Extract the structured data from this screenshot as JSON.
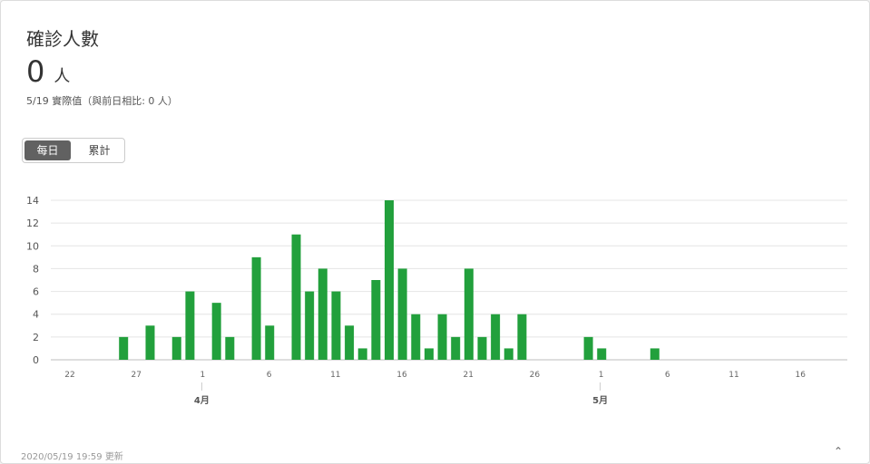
{
  "card": {
    "title": "確診人數",
    "value": "0",
    "unit": "人",
    "subtitle": "5/19 實際值（與前日相比: 0 人）",
    "toggle": {
      "daily": "每日",
      "cumulative": "累計"
    }
  },
  "colors": {
    "bar": "#22a03c",
    "grid": "#e4e4e4",
    "axis": "#999999"
  },
  "chart_data": {
    "type": "bar",
    "x_labels": [
      "22",
      "27",
      "1",
      "6",
      "11",
      "16",
      "21",
      "26",
      "1",
      "6",
      "11",
      "16"
    ],
    "month_labels": [
      "4月",
      "5月"
    ],
    "y_ticks": [
      0,
      2,
      4,
      6,
      8,
      10,
      12,
      14
    ],
    "ylim": [
      0,
      14
    ],
    "dates": [
      "3/22",
      "3/23",
      "3/24",
      "3/25",
      "3/26",
      "3/27",
      "3/28",
      "3/29",
      "3/30",
      "3/31",
      "4/1",
      "4/2",
      "4/3",
      "4/4",
      "4/5",
      "4/6",
      "4/7",
      "4/8",
      "4/9",
      "4/10",
      "4/11",
      "4/12",
      "4/13",
      "4/14",
      "4/15",
      "4/16",
      "4/17",
      "4/18",
      "4/19",
      "4/20",
      "4/21",
      "4/22",
      "4/23",
      "4/24",
      "4/25",
      "4/26",
      "4/27",
      "4/28",
      "4/29",
      "4/30",
      "5/1",
      "5/2",
      "5/3",
      "5/4",
      "5/5",
      "5/6",
      "5/7",
      "5/8",
      "5/9",
      "5/10",
      "5/11",
      "5/12",
      "5/13",
      "5/14",
      "5/15",
      "5/16",
      "5/17",
      "5/18",
      "5/19"
    ],
    "values": [
      0,
      0,
      0,
      0,
      0,
      2,
      0,
      3,
      0,
      2,
      6,
      0,
      5,
      2,
      0,
      9,
      3,
      0,
      11,
      6,
      8,
      6,
      3,
      1,
      7,
      14,
      8,
      4,
      1,
      4,
      2,
      8,
      2,
      4,
      1,
      4,
      0,
      0,
      0,
      0,
      2,
      1,
      0,
      0,
      0,
      1,
      0,
      0,
      0,
      0,
      0,
      0,
      0,
      0,
      0,
      0,
      0,
      0,
      0
    ]
  },
  "footer": {
    "text": "2020/05/19 19:59 更新"
  },
  "scroll_top_icon": "chevron-up-icon"
}
